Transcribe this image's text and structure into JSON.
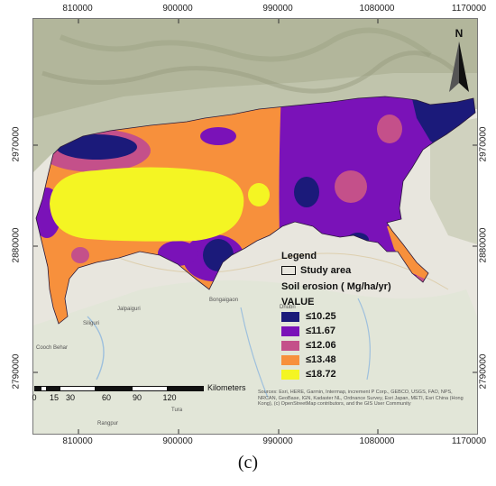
{
  "figure": {
    "caption": "(c)",
    "x_ticks": [
      "810000",
      "900000",
      "990000",
      "1080000",
      "1170000"
    ],
    "y_ticks": [
      "2970000",
      "2880000",
      "2790000"
    ]
  },
  "north_arrow": {
    "label": "N",
    "icon": "north-arrow-icon"
  },
  "legend": {
    "title": "Legend",
    "study_area_label": "Study area",
    "subtitle": "Soil erosion ( Mg/ha/yr)",
    "value_label": "VALUE",
    "classes": [
      {
        "label": "≤10.25",
        "color": "#1b1a7a"
      },
      {
        "label": "≤11.67",
        "color": "#7a12b8"
      },
      {
        "label": "≤12.06",
        "color": "#c4508a"
      },
      {
        "label": "≤13.48",
        "color": "#f7903c"
      },
      {
        "label": "≤18.72",
        "color": "#f4f523"
      }
    ]
  },
  "scale_bar": {
    "unit": "Kilometers",
    "labels": [
      "0",
      "15",
      "30",
      "60",
      "90",
      "120"
    ]
  },
  "basemap": {
    "attribution": "Sources: Esri, HERE, Garmin, Intermap, increment P Corp., GEBCO, USGS, FAO, NPS, NRCAN, GeoBase, IGN, Kadaster NL, Ordnance Survey, Esri Japan, METI, Esri China (Hong Kong), (c) OpenStreetMap contributors, and the GIS User Community",
    "place_labels": [
      "Siliguri",
      "Jalpaiguri",
      "Cooch Behar",
      "Bongaigaon",
      "Dhubri",
      "Tura",
      "Rangpur"
    ]
  }
}
